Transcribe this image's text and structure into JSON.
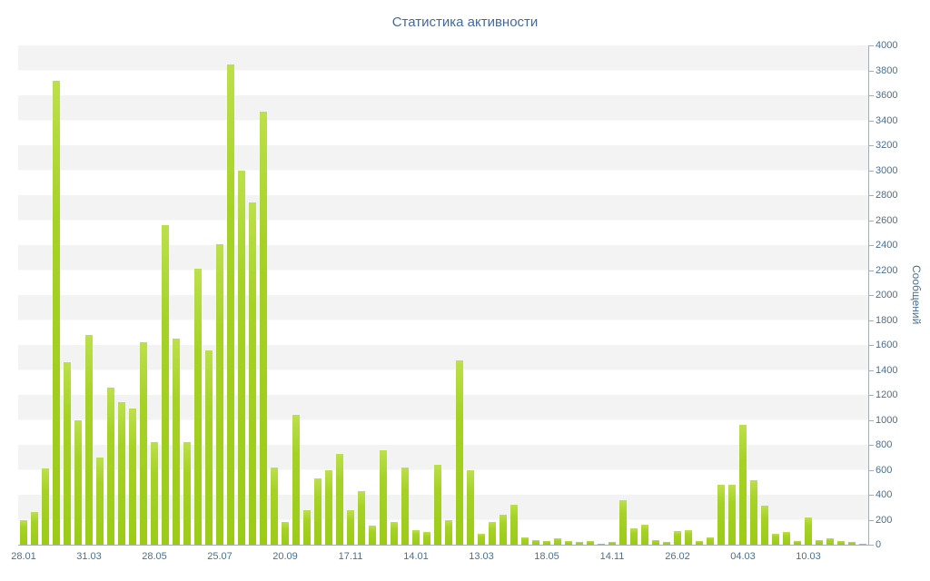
{
  "chart_data": {
    "type": "bar",
    "title": "Статистика активности",
    "xlabel": "",
    "ylabel": "Сообщений",
    "ylim": [
      0,
      4000
    ],
    "grid": "alternating horizontal bands every 200 units",
    "legend": "none",
    "bar_color": "#a6d226",
    "axis_color": "#a8aeb6",
    "text_color": "#4a7094",
    "title_color": "#44699d",
    "band_color": "#f3f3f4",
    "label_every": 6,
    "x_tick_labels": [
      "28.01",
      "31.03",
      "28.05",
      "25.07",
      "20.09",
      "17.11",
      "14.01",
      "13.03",
      "18.05",
      "14.11",
      "26.02",
      "04.03",
      "10.03"
    ],
    "y_ticks": [
      0,
      200,
      400,
      600,
      800,
      1000,
      1200,
      1400,
      1600,
      1800,
      2000,
      2200,
      2400,
      2600,
      2800,
      3000,
      3200,
      3400,
      3600,
      3800,
      4000
    ],
    "values": [
      200,
      260,
      610,
      3720,
      1460,
      1000,
      1680,
      700,
      1260,
      1140,
      1090,
      1620,
      820,
      2560,
      1650,
      820,
      2210,
      1560,
      2410,
      3850,
      3000,
      2740,
      3470,
      620,
      180,
      1040,
      280,
      530,
      600,
      730,
      280,
      430,
      150,
      760,
      180,
      620,
      120,
      100,
      640,
      200,
      1480,
      600,
      90,
      180,
      240,
      320,
      60,
      40,
      30,
      50,
      30,
      20,
      30,
      10,
      20,
      360,
      130,
      160,
      40,
      20,
      110,
      120,
      30,
      60,
      480,
      480,
      960,
      520,
      310,
      90,
      100,
      30,
      220,
      40,
      50,
      30,
      20,
      10
    ]
  }
}
